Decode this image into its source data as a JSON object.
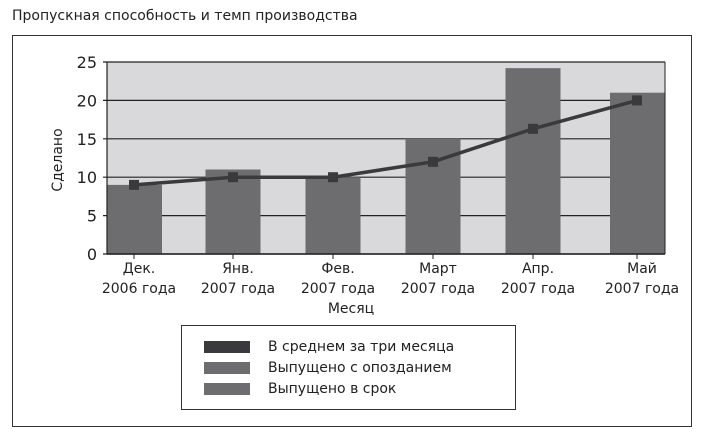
{
  "title": "Пропускная способность и темп производства",
  "chart_data": {
    "type": "bar",
    "xlabel": "Месяц",
    "ylabel": "Сделано",
    "ylim": [
      0,
      25
    ],
    "yticks": [
      0,
      5,
      10,
      15,
      20,
      25
    ],
    "grid": true,
    "legend_position": "bottom",
    "categories": [
      [
        "Дек.",
        "2006 года"
      ],
      [
        "Янв.",
        "2007 года"
      ],
      [
        "Фев.",
        "2007 года"
      ],
      [
        "Март",
        "2007 года"
      ],
      [
        "Апр.",
        "2007 года"
      ],
      [
        "Май",
        "2007 года"
      ]
    ],
    "bars": [
      9,
      11,
      10,
      15,
      24.2,
      21
    ],
    "line": {
      "name": "В среднем за три месяца",
      "values": [
        9,
        10,
        10,
        12,
        16.3,
        20
      ]
    },
    "legend": [
      {
        "label": "В среднем за три месяца",
        "color": "#3a3a3c"
      },
      {
        "label": "Выпущено с опозданием",
        "color": "#6d6d70"
      },
      {
        "label": "Выпущено в срок",
        "color": "#6d6d70"
      }
    ],
    "colors": {
      "plot_bg": "#d9d9db",
      "bar": "#6d6d70",
      "line": "#3a3a3c"
    }
  }
}
